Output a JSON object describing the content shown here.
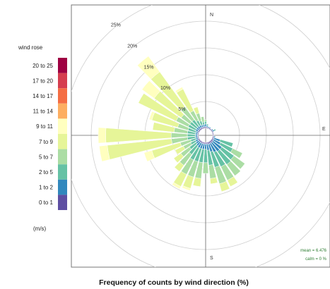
{
  "chart_data": {
    "type": "wind-rose",
    "title": "Frequency of counts by wind direction (%)",
    "legend_title": "wind rose",
    "units": "(m/s)",
    "legend_placement": "left",
    "compass": {
      "n": "N",
      "e": "E",
      "s": "S"
    },
    "rings": [
      "5%",
      "10%",
      "15%",
      "20%",
      "25%"
    ],
    "ring_values": [
      5,
      10,
      15,
      20,
      25
    ],
    "max_percent": 25,
    "stats": {
      "mean": "mean = 6.476",
      "calm": "calm = 0 %"
    },
    "bins": [
      {
        "label": "0 to 1",
        "color": "#5e4fa2"
      },
      {
        "label": "1 to 2",
        "color": "#3288bd"
      },
      {
        "label": "2 to 5",
        "color": "#66c2a5"
      },
      {
        "label": "5 to 7",
        "color": "#abdda4"
      },
      {
        "label": "7 to 9",
        "color": "#e6f598"
      },
      {
        "label": "9 to 11",
        "color": "#ffffbf"
      },
      {
        "label": "11 to 14",
        "color": "#fdae61"
      },
      {
        "label": "14 to 17",
        "color": "#f46d43"
      },
      {
        "label": "17 to 20",
        "color": "#d53e4f"
      },
      {
        "label": "20 to 25",
        "color": "#9e0142"
      }
    ],
    "direction_step_deg": 10,
    "sectors": [
      {
        "dir": 0,
        "values": [
          0.3,
          0.5,
          0.5,
          0.3
        ]
      },
      {
        "dir": 10,
        "values": [
          0.2,
          0.3,
          0.3
        ]
      },
      {
        "dir": 20,
        "values": [
          0.2,
          0.2
        ]
      },
      {
        "dir": 30,
        "values": [
          0.2,
          0.2
        ]
      },
      {
        "dir": 40,
        "values": [
          0.2
        ]
      },
      {
        "dir": 50,
        "values": [
          0.2,
          0.2
        ]
      },
      {
        "dir": 60,
        "values": [
          0.2,
          0.3,
          0.3
        ]
      },
      {
        "dir": 70,
        "values": [
          0.2
        ]
      },
      {
        "dir": 80,
        "values": [
          0.2
        ]
      },
      {
        "dir": 90,
        "values": [
          0.2
        ]
      },
      {
        "dir": 100,
        "values": [
          0.2,
          0.3
        ]
      },
      {
        "dir": 110,
        "values": [
          0.3,
          1.2,
          2.5
        ]
      },
      {
        "dir": 120,
        "values": [
          0.3,
          1.5,
          2.5,
          2.0
        ]
      },
      {
        "dir": 130,
        "values": [
          0.4,
          2.0,
          2.8,
          2.5
        ]
      },
      {
        "dir": 140,
        "values": [
          0.4,
          2.0,
          3.0,
          2.6
        ]
      },
      {
        "dir": 150,
        "values": [
          0.4,
          1.8,
          3.0,
          2.8,
          1.3
        ]
      },
      {
        "dir": 160,
        "values": [
          0.4,
          1.5,
          3.0,
          3.2,
          1.5
        ]
      },
      {
        "dir": 170,
        "values": [
          0.3,
          1.2,
          2.8,
          2.5,
          1.0
        ]
      },
      {
        "dir": 180,
        "values": [
          0.3,
          1.0,
          2.5,
          2.0
        ]
      },
      {
        "dir": 190,
        "values": [
          0.3,
          1.0,
          2.5,
          3.0,
          1.5
        ]
      },
      {
        "dir": 200,
        "values": [
          0.3,
          1.0,
          2.5,
          3.0,
          2.2,
          0.4
        ]
      },
      {
        "dir": 210,
        "values": [
          0.3,
          1.0,
          2.5,
          3.0,
          2.5,
          0.5
        ]
      },
      {
        "dir": 220,
        "values": [
          0.3,
          0.8,
          2.0,
          2.5,
          1.4
        ]
      },
      {
        "dir": 230,
        "values": [
          0.3,
          0.6,
          1.5,
          2.0,
          1.6
        ]
      },
      {
        "dir": 240,
        "values": [
          0.3,
          0.5,
          1.0,
          1.5,
          1.7
        ]
      },
      {
        "dir": 250,
        "values": [
          0.2,
          0.4,
          1.0,
          2.0,
          5.5,
          1.5
        ]
      },
      {
        "dir": 260,
        "values": [
          0.2,
          0.4,
          1.5,
          3.0,
          12.0,
          1.5
        ]
      },
      {
        "dir": 270,
        "values": [
          0.2,
          0.4,
          1.5,
          3.0,
          12.2,
          1.4
        ]
      },
      {
        "dir": 280,
        "values": [
          0.2,
          0.4,
          1.5,
          2.5,
          4.0
        ]
      },
      {
        "dir": 290,
        "values": [
          0.2,
          0.4,
          1.5,
          2.0,
          5.0,
          0.5
        ]
      },
      {
        "dir": 300,
        "values": [
          0.3,
          0.5,
          1.5,
          2.5,
          7.8
        ]
      },
      {
        "dir": 310,
        "values": [
          0.3,
          0.5,
          1.5,
          2.0,
          6.2,
          2.8
        ]
      },
      {
        "dir": 320,
        "values": [
          0.3,
          0.5,
          1.5,
          3.0,
          8.0,
          3.6
        ]
      },
      {
        "dir": 330,
        "values": [
          0.3,
          0.5,
          1.0,
          2.0,
          4.5,
          0.4
        ]
      },
      {
        "dir": 340,
        "values": [
          0.3,
          0.4,
          0.8,
          1.5,
          1.2
        ]
      },
      {
        "dir": 350,
        "values": [
          0.3,
          0.4,
          0.5,
          1.0
        ]
      }
    ]
  }
}
